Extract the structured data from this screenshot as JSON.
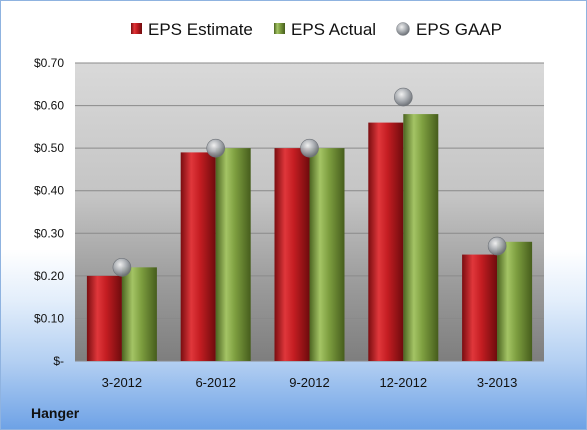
{
  "company_label": "Hanger",
  "chart_data": {
    "type": "bar",
    "categories": [
      "3-2012",
      "6-2012",
      "9-2012",
      "12-2012",
      "3-2013"
    ],
    "series": [
      {
        "name": "EPS Estimate",
        "kind": "bar",
        "color": "#c0191f",
        "values": [
          0.2,
          0.49,
          0.5,
          0.56,
          0.25
        ]
      },
      {
        "name": "EPS Actual",
        "kind": "bar",
        "color": "#7a9c3c",
        "values": [
          0.22,
          0.5,
          0.5,
          0.58,
          0.28
        ]
      },
      {
        "name": "EPS GAAP",
        "kind": "marker",
        "color": "#9aa0a6",
        "values": [
          0.22,
          0.5,
          0.5,
          0.62,
          0.27
        ]
      }
    ],
    "y_ticks": [
      "$-",
      "$0.10",
      "$0.20",
      "$0.30",
      "$0.40",
      "$0.50",
      "$0.60",
      "$0.70"
    ],
    "ylim": [
      0,
      0.7
    ],
    "legend_position": "top",
    "grid": true
  }
}
